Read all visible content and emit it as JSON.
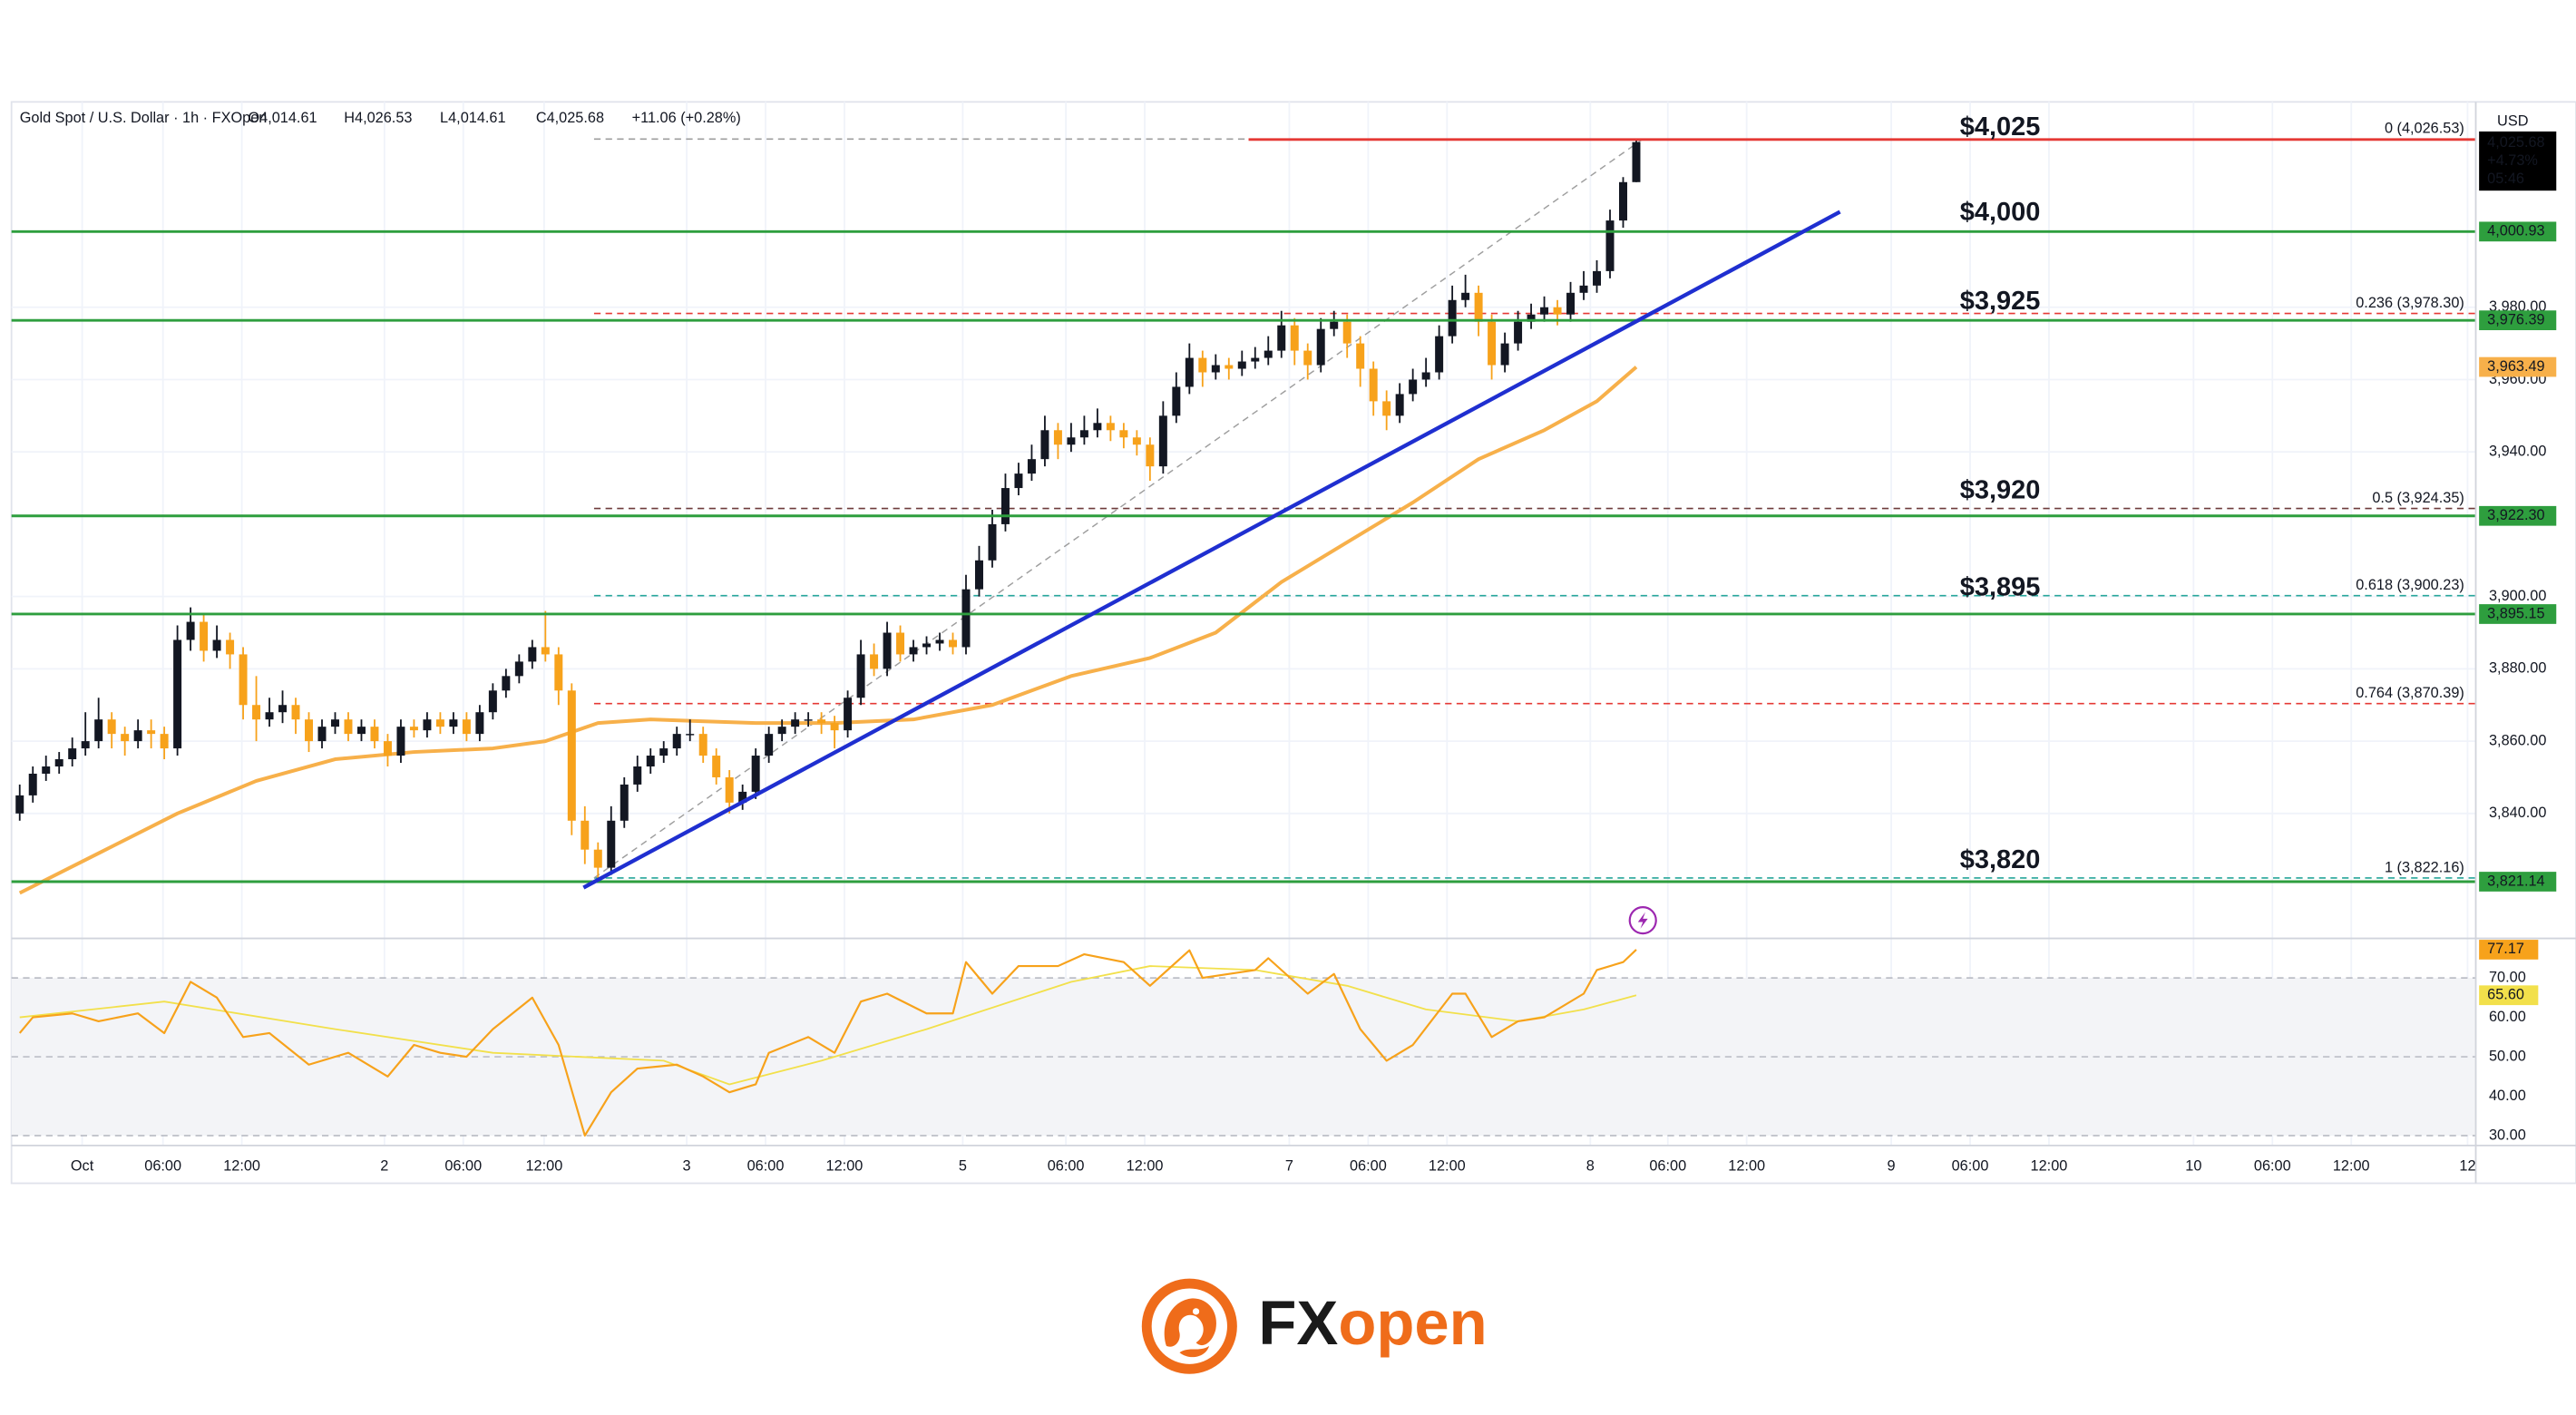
{
  "chart_data": {
    "type": "candlestick",
    "title": "Gold Spot / U.S. Dollar · 1h · FXOpen",
    "ohlc_text": [
      "O4,014.61",
      "H4,026.53",
      "L4,014.61",
      "C4,025.68",
      "+11.06 (+0.28%)"
    ],
    "currency": "USD",
    "up_color": "#131722",
    "down_color": "#f7a21b",
    "candles": [
      [
        3840,
        3848,
        3838,
        3845
      ],
      [
        3845,
        3853,
        3843,
        3851
      ],
      [
        3851,
        3856,
        3849,
        3853
      ],
      [
        3853,
        3857,
        3851,
        3855
      ],
      [
        3855,
        3861,
        3853,
        3858
      ],
      [
        3858,
        3868,
        3856,
        3860
      ],
      [
        3860,
        3872,
        3858,
        3866
      ],
      [
        3866,
        3868,
        3858,
        3862
      ],
      [
        3862,
        3864,
        3856,
        3860
      ],
      [
        3860,
        3866,
        3858,
        3863
      ],
      [
        3863,
        3866,
        3858,
        3862
      ],
      [
        3862,
        3864,
        3855,
        3858
      ],
      [
        3858,
        3892,
        3856,
        3888
      ],
      [
        3888,
        3897,
        3885,
        3893
      ],
      [
        3893,
        3895,
        3882,
        3885
      ],
      [
        3885,
        3892,
        3883,
        3888
      ],
      [
        3888,
        3890,
        3880,
        3884
      ],
      [
        3884,
        3886,
        3866,
        3870
      ],
      [
        3870,
        3878,
        3860,
        3866
      ],
      [
        3866,
        3872,
        3864,
        3868
      ],
      [
        3868,
        3874,
        3865,
        3870
      ],
      [
        3870,
        3872,
        3862,
        3866
      ],
      [
        3866,
        3868,
        3857,
        3860
      ],
      [
        3860,
        3866,
        3858,
        3864
      ],
      [
        3864,
        3868,
        3862,
        3866
      ],
      [
        3866,
        3868,
        3860,
        3862
      ],
      [
        3862,
        3866,
        3860,
        3864
      ],
      [
        3864,
        3866,
        3858,
        3860
      ],
      [
        3860,
        3862,
        3853,
        3856
      ],
      [
        3856,
        3866,
        3854,
        3864
      ],
      [
        3864,
        3866,
        3861,
        3863
      ],
      [
        3863,
        3868,
        3861,
        3866
      ],
      [
        3866,
        3868,
        3862,
        3864
      ],
      [
        3864,
        3868,
        3862,
        3866
      ],
      [
        3866,
        3868,
        3860,
        3862
      ],
      [
        3862,
        3870,
        3860,
        3868
      ],
      [
        3868,
        3876,
        3866,
        3874
      ],
      [
        3874,
        3880,
        3872,
        3878
      ],
      [
        3878,
        3884,
        3876,
        3882
      ],
      [
        3882,
        3888,
        3880,
        3886
      ],
      [
        3886,
        3896,
        3882,
        3884
      ],
      [
        3884,
        3886,
        3870,
        3874
      ],
      [
        3874,
        3876,
        3834,
        3838
      ],
      [
        3838,
        3842,
        3826,
        3830
      ],
      [
        3830,
        3832,
        3822,
        3825
      ],
      [
        3825,
        3842,
        3823,
        3838
      ],
      [
        3838,
        3850,
        3836,
        3848
      ],
      [
        3848,
        3856,
        3846,
        3853
      ],
      [
        3853,
        3858,
        3851,
        3856
      ],
      [
        3856,
        3860,
        3854,
        3858
      ],
      [
        3858,
        3864,
        3856,
        3862
      ],
      [
        3862,
        3866,
        3860,
        3862
      ],
      [
        3862,
        3864,
        3854,
        3856
      ],
      [
        3856,
        3858,
        3848,
        3850
      ],
      [
        3850,
        3852,
        3840,
        3843
      ],
      [
        3843,
        3848,
        3841,
        3846
      ],
      [
        3846,
        3858,
        3844,
        3856
      ],
      [
        3856,
        3864,
        3854,
        3862
      ],
      [
        3862,
        3866,
        3860,
        3864
      ],
      [
        3864,
        3868,
        3862,
        3866
      ],
      [
        3866,
        3868,
        3864,
        3866
      ],
      [
        3866,
        3868,
        3862,
        3865
      ],
      [
        3865,
        3867,
        3858,
        3863
      ],
      [
        3863,
        3874,
        3861,
        3872
      ],
      [
        3872,
        3888,
        3870,
        3884
      ],
      [
        3884,
        3887,
        3878,
        3880
      ],
      [
        3880,
        3893,
        3878,
        3890
      ],
      [
        3890,
        3892,
        3882,
        3884
      ],
      [
        3884,
        3888,
        3882,
        3886
      ],
      [
        3886,
        3889,
        3884,
        3887
      ],
      [
        3887,
        3890,
        3885,
        3888
      ],
      [
        3888,
        3890,
        3884,
        3886
      ],
      [
        3886,
        3906,
        3884,
        3902
      ],
      [
        3902,
        3914,
        3900,
        3910
      ],
      [
        3910,
        3924,
        3908,
        3920
      ],
      [
        3920,
        3934,
        3918,
        3930
      ],
      [
        3930,
        3937,
        3928,
        3934
      ],
      [
        3934,
        3942,
        3932,
        3938
      ],
      [
        3938,
        3950,
        3936,
        3946
      ],
      [
        3946,
        3948,
        3938,
        3942
      ],
      [
        3942,
        3948,
        3940,
        3944
      ],
      [
        3944,
        3950,
        3942,
        3946
      ],
      [
        3946,
        3952,
        3944,
        3948
      ],
      [
        3948,
        3950,
        3943,
        3946
      ],
      [
        3946,
        3948,
        3941,
        3944
      ],
      [
        3944,
        3946,
        3939,
        3942
      ],
      [
        3942,
        3944,
        3932,
        3936
      ],
      [
        3936,
        3954,
        3934,
        3950
      ],
      [
        3950,
        3962,
        3948,
        3958
      ],
      [
        3958,
        3970,
        3956,
        3966
      ],
      [
        3966,
        3968,
        3958,
        3962
      ],
      [
        3962,
        3967,
        3960,
        3964
      ],
      [
        3964,
        3966,
        3960,
        3963
      ],
      [
        3963,
        3968,
        3961,
        3965
      ],
      [
        3965,
        3969,
        3963,
        3966
      ],
      [
        3966,
        3972,
        3964,
        3968
      ],
      [
        3968,
        3979,
        3966,
        3975
      ],
      [
        3975,
        3977,
        3964,
        3968
      ],
      [
        3968,
        3970,
        3960,
        3964
      ],
      [
        3964,
        3977,
        3962,
        3974
      ],
      [
        3974,
        3979,
        3972,
        3976
      ],
      [
        3976,
        3978,
        3966,
        3970
      ],
      [
        3970,
        3972,
        3958,
        3963
      ],
      [
        3963,
        3965,
        3950,
        3954
      ],
      [
        3954,
        3957,
        3946,
        3950
      ],
      [
        3950,
        3959,
        3948,
        3956
      ],
      [
        3956,
        3963,
        3954,
        3960
      ],
      [
        3960,
        3966,
        3958,
        3962
      ],
      [
        3962,
        3975,
        3960,
        3972
      ],
      [
        3972,
        3986,
        3970,
        3982
      ],
      [
        3982,
        3989,
        3980,
        3984
      ],
      [
        3984,
        3986,
        3972,
        3976
      ],
      [
        3976,
        3978,
        3960,
        3964
      ],
      [
        3964,
        3973,
        3962,
        3970
      ],
      [
        3970,
        3979,
        3968,
        3976
      ],
      [
        3976,
        3981,
        3974,
        3978
      ],
      [
        3978,
        3983,
        3976,
        3980
      ],
      [
        3980,
        3982,
        3975,
        3978
      ],
      [
        3978,
        3987,
        3976,
        3984
      ],
      [
        3984,
        3990,
        3982,
        3986
      ],
      [
        3986,
        3993,
        3984,
        3990
      ],
      [
        3990,
        4007,
        3988,
        4004
      ],
      [
        4004,
        4016,
        4002,
        4014.61
      ],
      [
        4014.61,
        4026.53,
        4014.61,
        4025.68
      ]
    ],
    "xlim": [
      -0.625,
      186.875
    ],
    "xticks": [
      {
        "value": 4.75,
        "label": "Oct"
      },
      {
        "value": 10.9,
        "label": "06:00"
      },
      {
        "value": 16.9,
        "label": "12:00"
      },
      {
        "value": 27.75,
        "label": "2"
      },
      {
        "value": 33.75,
        "label": "06:00"
      },
      {
        "value": 39.9,
        "label": "12:00"
      },
      {
        "value": 50.75,
        "label": "3"
      },
      {
        "value": 56.75,
        "label": "06:00"
      },
      {
        "value": 62.75,
        "label": "12:00"
      },
      {
        "value": 71.75,
        "label": "5"
      },
      {
        "value": 79.6,
        "label": "06:00"
      },
      {
        "value": 85.6,
        "label": "12:00"
      },
      {
        "value": 96.6,
        "label": "7"
      },
      {
        "value": 102.6,
        "label": "06:00"
      },
      {
        "value": 108.6,
        "label": "12:00"
      },
      {
        "value": 119.5,
        "label": "8"
      },
      {
        "value": 125.4,
        "label": "06:00"
      },
      {
        "value": 131.4,
        "label": "12:00"
      },
      {
        "value": 142.4,
        "label": "9"
      },
      {
        "value": 148.4,
        "label": "06:00"
      },
      {
        "value": 154.4,
        "label": "12:00"
      },
      {
        "value": 165.4,
        "label": "10"
      },
      {
        "value": 171.4,
        "label": "06:00"
      },
      {
        "value": 177.4,
        "label": "12:00"
      },
      {
        "value": 186.25,
        "label": "12"
      }
    ],
    "ylim": [
      3805.9,
      4036.8
    ],
    "yticks": [
      {
        "value": 3840,
        "label": "3,840.00"
      },
      {
        "value": 3860,
        "label": "3,860.00"
      },
      {
        "value": 3880,
        "label": "3,880.00"
      },
      {
        "value": 3900,
        "label": "3,900.00"
      },
      {
        "value": 3940,
        "label": "3,940.00"
      },
      {
        "value": 3960,
        "label": "3,960.00"
      },
      {
        "value": 3980,
        "label": "3,980.00"
      }
    ],
    "grid": true,
    "sma": {
      "color": "#f7b04a",
      "x": [
        0,
        6,
        12,
        18,
        24,
        30,
        36,
        40,
        44,
        48,
        56,
        62,
        68,
        74,
        80,
        86,
        91,
        96,
        101,
        106,
        111,
        116,
        120,
        123
      ],
      "values": [
        3818,
        3829,
        3840,
        3849,
        3855,
        3857,
        3858,
        3860,
        3865,
        3866,
        3865,
        3865,
        3866,
        3870,
        3878,
        3883,
        3890,
        3904,
        3915,
        3926,
        3938,
        3946,
        3954,
        3963.49
      ],
      "last_label": "3,963.49"
    },
    "levels": {
      "color": "#2e9e3e",
      "items": [
        {
          "value": 4000.93,
          "label": "4,000.93"
        },
        {
          "value": 3976.39,
          "label": "3,976.39"
        },
        {
          "value": 3922.3,
          "label": "3,922.30"
        },
        {
          "value": 3895.15,
          "label": "3,895.15"
        },
        {
          "value": 3821.14,
          "label": "3,821.14"
        }
      ]
    },
    "red_line": {
      "value": 4026.4,
      "color": "#e53935",
      "x_start": 93.5
    },
    "fib": {
      "x": [
        43.7,
        123.5
      ],
      "levels": [
        {
          "value": 4026.53,
          "label": "0 (4,026.53)",
          "color": "#9e9e9e"
        },
        {
          "value": 3978.3,
          "label": "0.236 (3,978.30)",
          "color": "#e53935"
        },
        {
          "value": 3924.35,
          "label": "0.5 (3,924.35)",
          "color": "#6d3b3b"
        },
        {
          "value": 3900.23,
          "label": "0.618 (3,900.23)",
          "color": "#26a69a"
        },
        {
          "value": 3870.39,
          "label": "0.764 (3,870.39)",
          "color": "#e53935"
        },
        {
          "value": 3822.16,
          "label": "1 (3,822.16)",
          "color": "#26a69a"
        }
      ]
    },
    "trend_line": {
      "color": "#1f2fd0",
      "x": [
        42.9,
        138.5
      ],
      "values": [
        3819.5,
        4006.4
      ]
    },
    "annotations": [
      "$4,025",
      "$4,000",
      "$3,925",
      "$3,920",
      "$3,895",
      "$3,820"
    ],
    "annotation_color": "#f29b16",
    "last_price": {
      "value": 4025.68,
      "label": "4,025.68"
    },
    "change_pct": "+4.73%",
    "countdown": "05:46",
    "rsi": {
      "ylim": [
        27.5,
        79.6
      ],
      "yticks": [
        {
          "value": 70,
          "label": "70.00"
        },
        {
          "value": 60,
          "label": "60.00"
        },
        {
          "value": 50,
          "label": "50.00"
        },
        {
          "value": 40,
          "label": "40.00"
        },
        {
          "value": 30,
          "label": "30.00"
        }
      ],
      "band": [
        30,
        70
      ],
      "levels": [
        70,
        50,
        30
      ],
      "color": "#f7a21b",
      "x": [
        0,
        1,
        4,
        6,
        9,
        11,
        13,
        15,
        17,
        19,
        22,
        25,
        28,
        30,
        32,
        34,
        36,
        39,
        41,
        43,
        45,
        47,
        50,
        52,
        54,
        56,
        57,
        60,
        62,
        64,
        66,
        69,
        71,
        72,
        74,
        76,
        79,
        81,
        84,
        86,
        89,
        90,
        94,
        95,
        98,
        100,
        102,
        104,
        106,
        109,
        110,
        112,
        114,
        116,
        119,
        120,
        122,
        123
      ],
      "values": [
        56,
        60,
        61,
        59,
        61,
        56,
        69,
        65,
        55,
        56,
        48,
        51,
        45,
        53,
        51,
        50,
        57,
        65,
        53,
        30,
        41,
        47,
        48,
        45,
        41,
        43,
        51,
        55,
        51,
        64,
        66,
        61,
        61,
        74,
        66,
        73,
        73,
        76,
        74,
        68,
        77,
        70,
        72,
        75,
        66,
        71,
        57,
        49,
        53,
        66,
        66,
        55,
        59,
        60,
        66,
        72,
        74,
        77.17
      ],
      "last_label": "77.17",
      "ma": {
        "color": "#f2e04b",
        "x": [
          0,
          11,
          24,
          36,
          49,
          54,
          61,
          69,
          80,
          86,
          94,
          101,
          107,
          114,
          119,
          123
        ],
        "values": [
          60,
          64,
          57,
          51,
          49,
          43,
          49,
          57,
          69,
          73,
          72,
          68,
          62,
          59,
          62,
          65.6
        ],
        "last_label": "65.60"
      }
    }
  },
  "brand": {
    "fx": "FX",
    "open": "open"
  }
}
